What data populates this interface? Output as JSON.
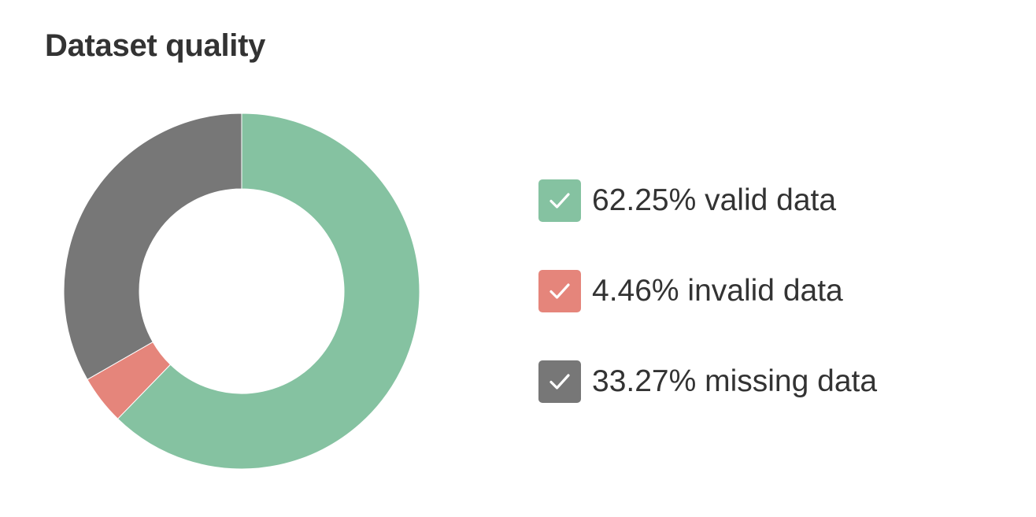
{
  "title": "Dataset quality",
  "chart_data": {
    "type": "pie",
    "title": "Dataset quality",
    "donut": true,
    "start_angle_deg": 0,
    "direction": "clockwise",
    "slices": [
      {
        "label": "valid data",
        "value": 62.25,
        "color": "#85c2a1"
      },
      {
        "label": "invalid data",
        "value": 4.46,
        "color": "#e5857b"
      },
      {
        "label": "missing data",
        "value": 33.27,
        "color": "#777777"
      }
    ],
    "legend": {
      "placement": "right",
      "checked": [
        true,
        true,
        true
      ],
      "items": [
        {
          "text": "62.25% valid data",
          "icon": "check-icon"
        },
        {
          "text": "4.46% invalid data",
          "icon": "check-icon"
        },
        {
          "text": "33.27% missing data",
          "icon": "check-icon"
        }
      ]
    }
  }
}
